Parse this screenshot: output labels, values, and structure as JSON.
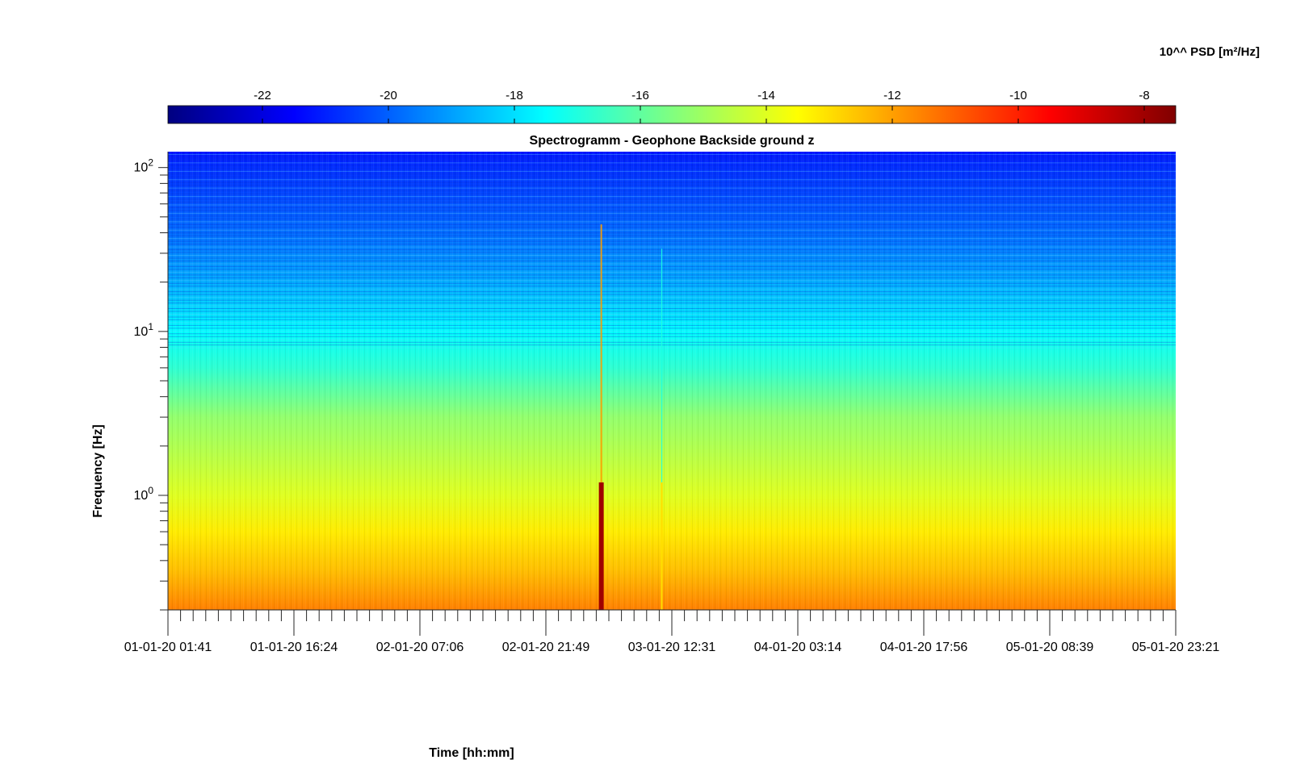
{
  "chart_data": {
    "type": "heatmap",
    "title": "Spectrogramm - Geophone Backside ground z",
    "xlabel": "Time [hh:mm]",
    "ylabel": "Frequency [Hz]",
    "x_tick_labels": [
      "01-01-20 01:41",
      "01-01-20 16:24",
      "02-01-20 07:06",
      "02-01-20 21:49",
      "03-01-20 12:31",
      "04-01-20 03:14",
      "04-01-20 17:56",
      "05-01-20 08:39",
      "05-01-20 23:21"
    ],
    "y_scale": "log",
    "y_ticks": [
      {
        "base": "10",
        "exp": "0",
        "value": 1
      },
      {
        "base": "10",
        "exp": "1",
        "value": 10
      },
      {
        "base": "10",
        "exp": "2",
        "value": 100
      }
    ],
    "ylim": [
      0.2,
      125
    ],
    "colorbar": {
      "label": "10^^ PSD [m²/Hz]",
      "ticks": [
        -22,
        -20,
        -18,
        -16,
        -14,
        -12,
        -10,
        -8
      ],
      "range": [
        -23.5,
        -7.5
      ],
      "colormap": "jet",
      "location": "top"
    },
    "features": [
      {
        "description": "strong broadband event",
        "time_fraction": 0.43,
        "log10_psd": -8
      },
      {
        "description": "weaker broadband event",
        "time_fraction": 0.49,
        "log10_psd": -13
      }
    ],
    "psd_profile": [
      {
        "freq_hz": 0.2,
        "log10_psd": -11.5
      },
      {
        "freq_hz": 0.35,
        "log10_psd": -12.5
      },
      {
        "freq_hz": 0.6,
        "log10_psd": -13.2
      },
      {
        "freq_hz": 1.0,
        "log10_psd": -14.0
      },
      {
        "freq_hz": 3,
        "log10_psd": -15.2
      },
      {
        "freq_hz": 6,
        "log10_psd": -16.8
      },
      {
        "freq_hz": 10,
        "log10_psd": -17.5
      },
      {
        "freq_hz": 20,
        "log10_psd": -18.8
      },
      {
        "freq_hz": 40,
        "log10_psd": -19.8
      },
      {
        "freq_hz": 100,
        "log10_psd": -20.8
      },
      {
        "freq_hz": 125,
        "log10_psd": -21.2
      }
    ]
  }
}
